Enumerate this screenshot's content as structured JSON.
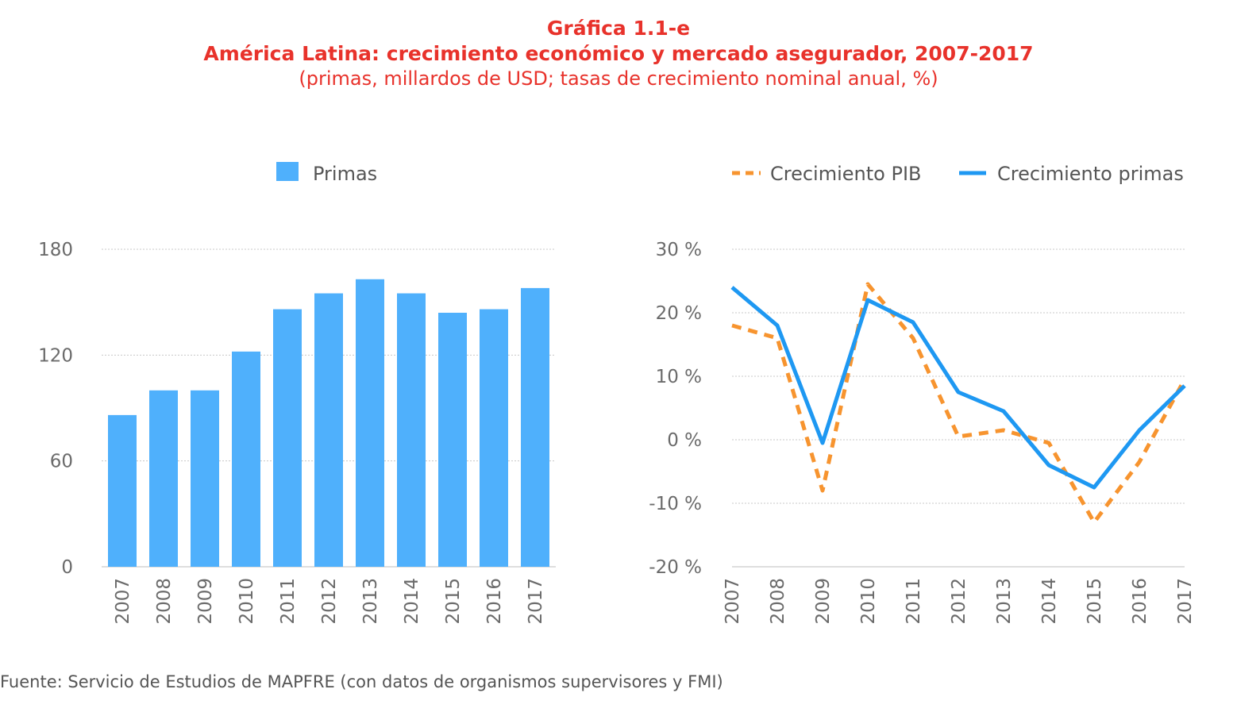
{
  "header": {
    "label": "Gráfica 1.1-e",
    "title": "América Latina: crecimiento económico y mercado asegurador, 2007-2017",
    "subtitle": "(primas, millardos de USD; tasas de crecimiento nominal anual, %)"
  },
  "colors": {
    "title": "#e8322b",
    "bars": "#4fb0fc",
    "gdp_line": "#f7942f",
    "premium_line": "#1e98f2"
  },
  "chart_data": [
    {
      "type": "bar",
      "categories": [
        "2007",
        "2008",
        "2009",
        "2010",
        "2011",
        "2012",
        "2013",
        "2014",
        "2015",
        "2016",
        "2017"
      ],
      "series": [
        {
          "name": "Primas",
          "values": [
            86,
            100,
            100,
            122,
            146,
            155,
            163,
            155,
            144,
            146,
            158
          ]
        }
      ],
      "ylim": [
        0,
        180
      ],
      "yticks": [
        0,
        60,
        120,
        180
      ],
      "ytick_labels": [
        "0",
        "60",
        "120",
        "180"
      ],
      "grid": true,
      "legend": "top"
    },
    {
      "type": "line",
      "categories": [
        "2007",
        "2008",
        "2009",
        "2010",
        "2011",
        "2012",
        "2013",
        "2014",
        "2015",
        "2016",
        "2017"
      ],
      "series": [
        {
          "name": "Crecimiento PIB",
          "style": "dashed",
          "values": [
            18,
            16,
            -8,
            24.5,
            16,
            0.5,
            1.5,
            -0.5,
            -13,
            -3.5,
            9.5
          ]
        },
        {
          "name": "Crecimiento primas",
          "style": "solid",
          "values": [
            24,
            18,
            -0.5,
            22,
            18.5,
            7.5,
            4.5,
            -4,
            -7.5,
            1.5,
            8.5
          ]
        }
      ],
      "ylim": [
        -20,
        30
      ],
      "yticks": [
        -20,
        -10,
        0,
        10,
        20,
        30
      ],
      "ytick_labels": [
        "-20 %",
        "-10 %",
        "0 %",
        "10 %",
        "20 %",
        "30 %"
      ],
      "grid": true,
      "legend": "top"
    }
  ],
  "footer": {
    "source": "Fuente: Servicio de Estudios de MAPFRE (con datos de organismos supervisores y FMI)"
  }
}
